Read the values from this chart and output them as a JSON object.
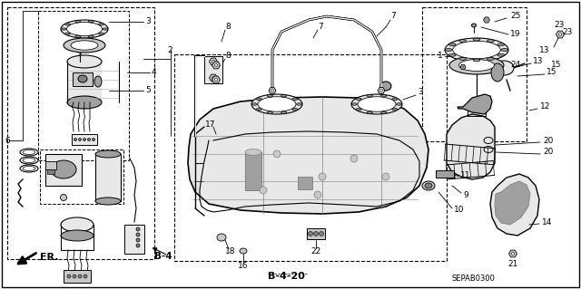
{
  "bg_color": "#ffffff",
  "line_color": "#000000",
  "diagram_code": "SEPAB0300",
  "ref_code_b4": "B-4",
  "ref_code_b420": "B-4-20",
  "fr_label": "FR.",
  "figsize": [
    6.4,
    3.19
  ],
  "dpi": 100,
  "gray1": "#c8c8c8",
  "gray2": "#a0a0a0",
  "gray3": "#808080",
  "gray4": "#e8e8e8",
  "gray5": "#b0b0b0"
}
